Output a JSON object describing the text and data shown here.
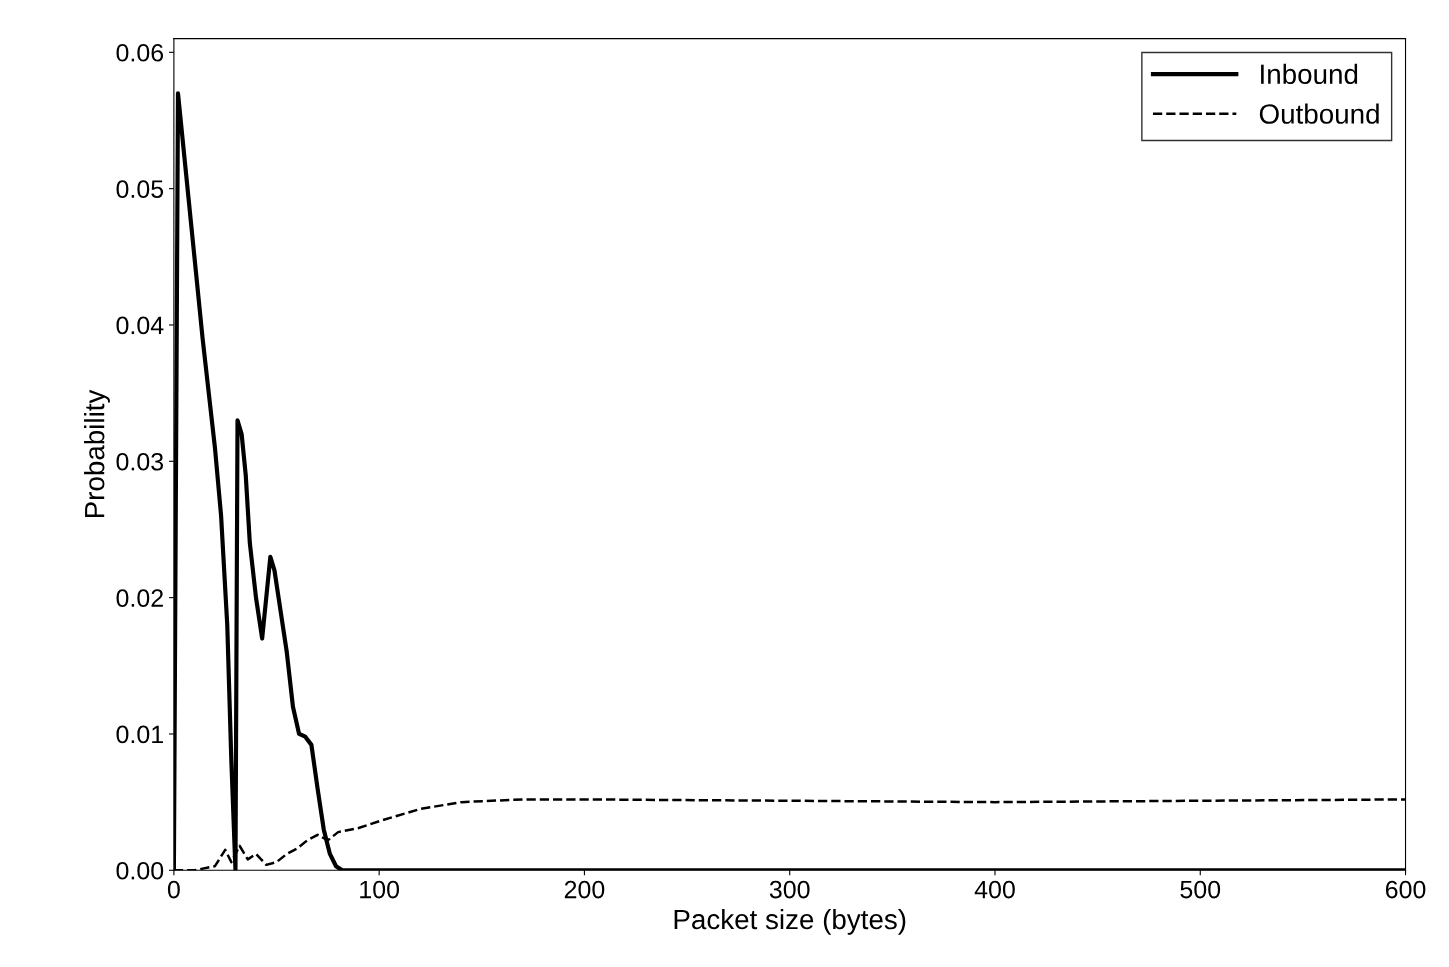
{
  "chart_data": {
    "type": "line",
    "xlabel": "Packet size (bytes)",
    "ylabel": "Probability",
    "xlim": [
      0,
      600
    ],
    "xticks": [
      0,
      100,
      200,
      300,
      400,
      500,
      600
    ],
    "ylim": [
      0,
      0.061
    ],
    "yticks": [
      {
        "value": 0,
        "label": "0.00"
      },
      {
        "value": 0.01,
        "label": "0.01"
      },
      {
        "value": 0.02,
        "label": "0.02"
      },
      {
        "value": 0.03,
        "label": "0.03"
      },
      {
        "value": 0.04,
        "label": "0.04"
      },
      {
        "value": 0.05,
        "label": "0.05"
      },
      {
        "value": 0.06,
        "label": "0.06"
      }
    ],
    "grid": false,
    "legend": "top right",
    "series": [
      {
        "name": "Inbound",
        "color": "#000000",
        "line_style": "solid",
        "x": [
          0,
          2,
          6,
          10,
          14,
          17,
          20,
          23,
          26,
          28,
          30,
          31,
          33,
          35,
          37,
          40,
          43,
          45,
          47,
          49,
          52,
          55,
          58,
          61,
          64,
          67,
          70,
          73,
          76,
          79,
          82,
          150,
          300,
          450,
          600
        ],
        "values": [
          0,
          0.057,
          0.051,
          0.045,
          0.039,
          0.035,
          0.031,
          0.026,
          0.018,
          0.008,
          0.0,
          0.033,
          0.032,
          0.029,
          0.024,
          0.02,
          0.017,
          0.02,
          0.023,
          0.022,
          0.019,
          0.016,
          0.012,
          0.01,
          0.0098,
          0.0092,
          0.006,
          0.003,
          0.0012,
          0.0003,
          0,
          0,
          0,
          0,
          0
        ]
      },
      {
        "name": "Outbound",
        "color": "#000000",
        "line_style": "dashed",
        "x": [
          0,
          10,
          20,
          25,
          28,
          32,
          36,
          40,
          45,
          50,
          55,
          60,
          65,
          70,
          75,
          80,
          90,
          100,
          120,
          140,
          170,
          200,
          300,
          400,
          500,
          600
        ],
        "values": [
          0,
          0,
          0.0003,
          0.0015,
          0.0006,
          0.0018,
          0.0008,
          0.0012,
          0.0004,
          0.0006,
          0.0012,
          0.0016,
          0.0022,
          0.0026,
          0.0022,
          0.0028,
          0.0031,
          0.0036,
          0.0045,
          0.005,
          0.0052,
          0.0052,
          0.0051,
          0.005,
          0.0051,
          0.0052
        ]
      }
    ]
  }
}
